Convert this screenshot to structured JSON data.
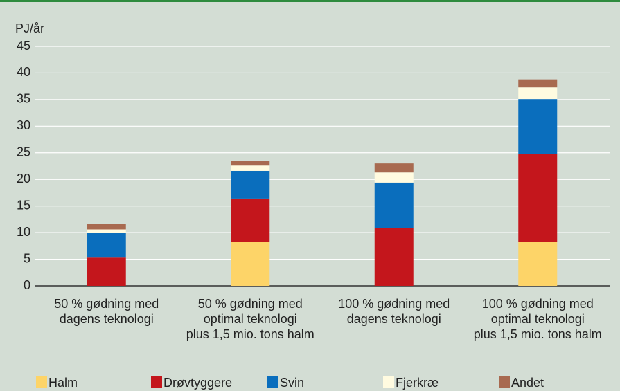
{
  "chart_data": {
    "type": "stacked_bar",
    "y_label": "PJ/år",
    "categories": [
      "50 % gødning med\ndagens teknologi",
      "50 % gødning med\noptimal teknologi\nplus 1,5 mio. tons halm",
      "100 % gødning med\ndagens teknologi",
      "100 % gødning med\noptimal teknologi\nplus 1,5 mio. tons halm"
    ],
    "series": [
      {
        "name": "Halm",
        "color": "#fdd468",
        "values": [
          0,
          8.3,
          0,
          8.3
        ]
      },
      {
        "name": "Drøvtyggere",
        "color": "#c4161c",
        "values": [
          5.3,
          8.1,
          10.8,
          16.5
        ]
      },
      {
        "name": "Svin",
        "color": "#0a6ebd",
        "values": [
          4.6,
          5.2,
          8.6,
          10.3
        ]
      },
      {
        "name": "Fjerkræ",
        "color": "#fffbe0",
        "values": [
          0.7,
          1.0,
          1.9,
          2.2
        ]
      },
      {
        "name": "Andet",
        "color": "#a86a50",
        "values": [
          1.0,
          0.9,
          1.7,
          1.5
        ]
      }
    ],
    "ylim": [
      0,
      45
    ],
    "yticks": [
      0,
      5,
      10,
      15,
      20,
      25,
      30,
      35,
      40,
      45
    ],
    "grid": true,
    "legend": "bottom"
  }
}
